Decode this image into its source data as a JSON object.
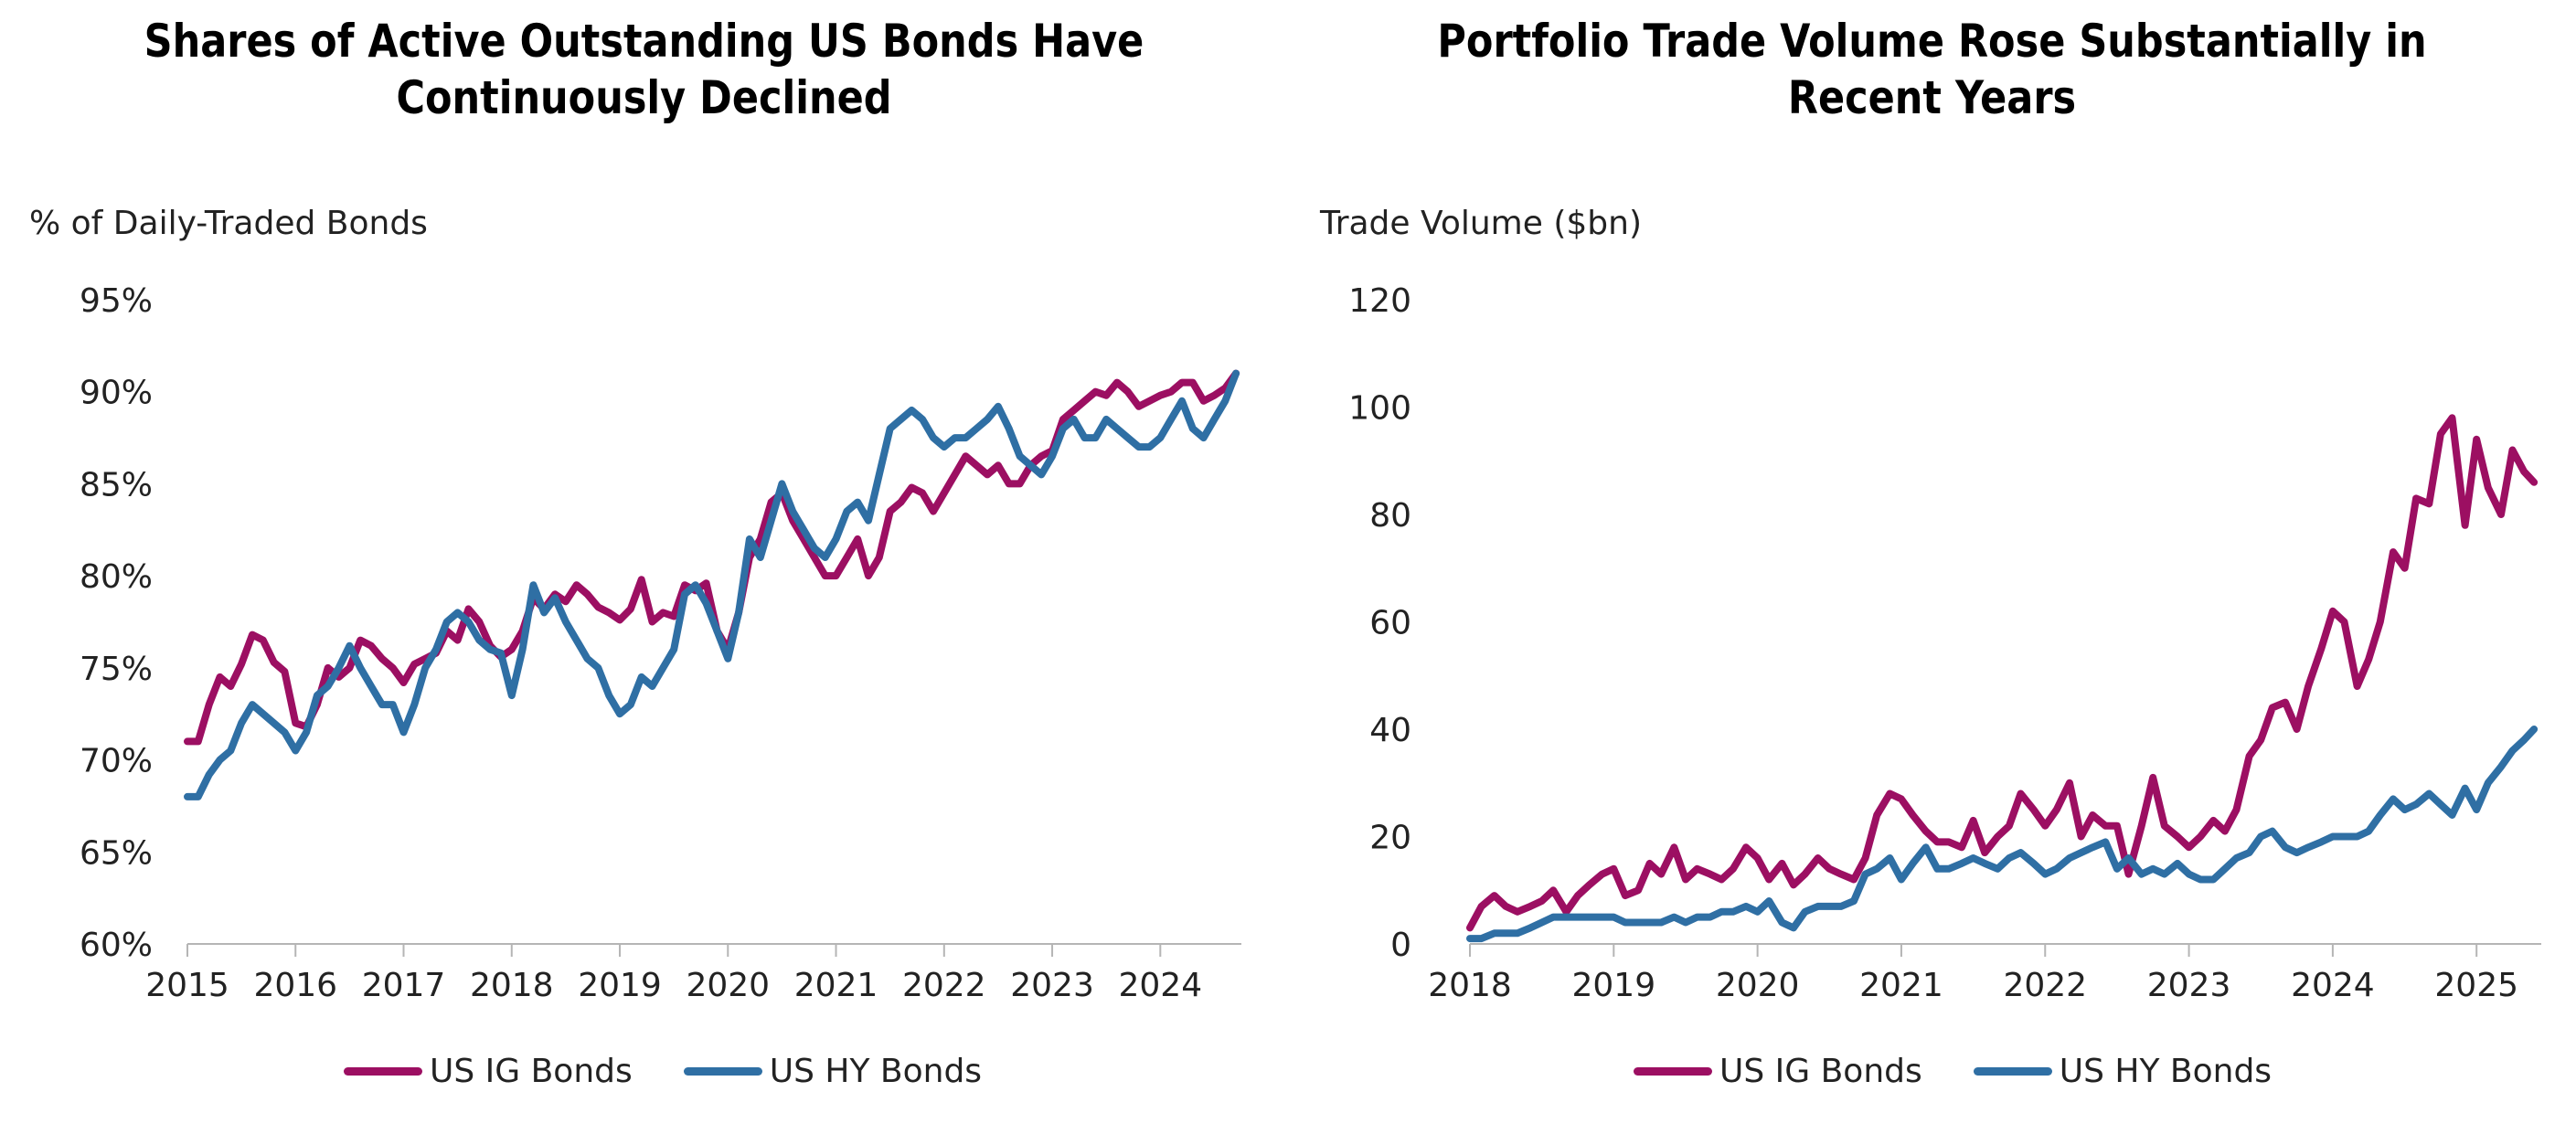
{
  "colors": {
    "ig": "#9c0f62",
    "hy": "#2f6fa4",
    "axis": "#b5b5b5",
    "text": "#222222"
  },
  "chart_data": [
    {
      "type": "line",
      "title": [
        "Shares of Active Outstanding US Bonds Have",
        "Continuously Declined"
      ],
      "ylabel": "% of Daily-Traded Bonds",
      "ylim": [
        60,
        95
      ],
      "xlim": [
        2015.0,
        2024.75
      ],
      "ytick_values": [
        60,
        65,
        70,
        75,
        80,
        85,
        90,
        95
      ],
      "yticks": [
        "60%",
        "65%",
        "70%",
        "75%",
        "80%",
        "85%",
        "90%",
        "95%"
      ],
      "xtick_values": [
        2015,
        2016,
        2017,
        2018,
        2019,
        2020,
        2021,
        2022,
        2023,
        2024
      ],
      "xticks": [
        "2015",
        "2016",
        "2017",
        "2018",
        "2019",
        "2020",
        "2021",
        "2022",
        "2023",
        "2024"
      ],
      "grid": false,
      "legend_position": "bottom",
      "series": [
        {
          "name": "US IG Bonds",
          "color_key": "ig",
          "x": [
            2015.0,
            2015.1,
            2015.2,
            2015.3,
            2015.4,
            2015.5,
            2015.6,
            2015.7,
            2015.8,
            2015.9,
            2016.0,
            2016.1,
            2016.2,
            2016.3,
            2016.4,
            2016.5,
            2016.6,
            2016.7,
            2016.8,
            2016.9,
            2017.0,
            2017.1,
            2017.2,
            2017.3,
            2017.4,
            2017.5,
            2017.6,
            2017.7,
            2017.8,
            2017.9,
            2018.0,
            2018.1,
            2018.2,
            2018.3,
            2018.4,
            2018.5,
            2018.6,
            2018.7,
            2018.8,
            2018.9,
            2019.0,
            2019.1,
            2019.2,
            2019.3,
            2019.4,
            2019.5,
            2019.6,
            2019.7,
            2019.8,
            2019.9,
            2020.0,
            2020.1,
            2020.2,
            2020.3,
            2020.4,
            2020.5,
            2020.6,
            2020.7,
            2020.8,
            2020.9,
            2021.0,
            2021.1,
            2021.2,
            2021.3,
            2021.4,
            2021.5,
            2021.6,
            2021.7,
            2021.8,
            2021.9,
            2022.0,
            2022.1,
            2022.2,
            2022.3,
            2022.4,
            2022.5,
            2022.6,
            2022.7,
            2022.8,
            2022.9,
            2023.0,
            2023.1,
            2023.2,
            2023.3,
            2023.4,
            2023.5,
            2023.6,
            2023.7,
            2023.8,
            2023.9,
            2024.0,
            2024.1,
            2024.2,
            2024.3,
            2024.4,
            2024.5,
            2024.6,
            2024.7
          ],
          "y": [
            71.0,
            71.0,
            73.0,
            74.5,
            74.0,
            75.2,
            76.8,
            76.5,
            75.3,
            74.8,
            72.0,
            71.8,
            73.0,
            75.0,
            74.5,
            75.0,
            76.5,
            76.2,
            75.5,
            75.0,
            74.2,
            75.2,
            75.5,
            75.8,
            77.0,
            76.5,
            78.2,
            77.5,
            76.2,
            75.6,
            76.0,
            77.0,
            78.8,
            78.2,
            79.0,
            78.6,
            79.5,
            79.0,
            78.3,
            78.0,
            77.6,
            78.2,
            79.8,
            77.5,
            78.0,
            77.8,
            79.5,
            79.2,
            79.6,
            77.0,
            76.0,
            78.0,
            81.0,
            82.0,
            84.0,
            84.5,
            83.0,
            82.0,
            81.0,
            80.0,
            80.0,
            81.0,
            82.0,
            80.0,
            81.0,
            83.5,
            84.0,
            84.8,
            84.5,
            83.5,
            84.5,
            85.5,
            86.5,
            86.0,
            85.5,
            86.0,
            85.0,
            85.0,
            86.0,
            86.5,
            86.8,
            88.5,
            89.0,
            89.5,
            90.0,
            89.8,
            90.5,
            90.0,
            89.2,
            89.5,
            89.8,
            90.0,
            90.5,
            90.5,
            89.5,
            89.8,
            90.2,
            91.0
          ]
        },
        {
          "name": "US HY Bonds",
          "color_key": "hy",
          "x": [
            2015.0,
            2015.1,
            2015.2,
            2015.3,
            2015.4,
            2015.5,
            2015.6,
            2015.7,
            2015.8,
            2015.9,
            2016.0,
            2016.1,
            2016.2,
            2016.3,
            2016.4,
            2016.5,
            2016.6,
            2016.7,
            2016.8,
            2016.9,
            2017.0,
            2017.1,
            2017.2,
            2017.3,
            2017.4,
            2017.5,
            2017.6,
            2017.7,
            2017.8,
            2017.9,
            2018.0,
            2018.1,
            2018.2,
            2018.3,
            2018.4,
            2018.5,
            2018.6,
            2018.7,
            2018.8,
            2018.9,
            2019.0,
            2019.1,
            2019.2,
            2019.3,
            2019.4,
            2019.5,
            2019.6,
            2019.7,
            2019.8,
            2019.9,
            2020.0,
            2020.1,
            2020.2,
            2020.3,
            2020.4,
            2020.5,
            2020.6,
            2020.7,
            2020.8,
            2020.9,
            2021.0,
            2021.1,
            2021.2,
            2021.3,
            2021.4,
            2021.5,
            2021.6,
            2021.7,
            2021.8,
            2021.9,
            2022.0,
            2022.1,
            2022.2,
            2022.3,
            2022.4,
            2022.5,
            2022.6,
            2022.7,
            2022.8,
            2022.9,
            2023.0,
            2023.1,
            2023.2,
            2023.3,
            2023.4,
            2023.5,
            2023.6,
            2023.7,
            2023.8,
            2023.9,
            2024.0,
            2024.1,
            2024.2,
            2024.3,
            2024.4,
            2024.5,
            2024.6,
            2024.7
          ],
          "y": [
            68.0,
            68.0,
            69.2,
            70.0,
            70.5,
            72.0,
            73.0,
            72.5,
            72.0,
            71.5,
            70.5,
            71.5,
            73.5,
            74.0,
            75.0,
            76.2,
            75.0,
            74.0,
            73.0,
            73.0,
            71.5,
            73.0,
            75.0,
            76.0,
            77.5,
            78.0,
            77.5,
            76.5,
            76.0,
            75.8,
            73.5,
            76.0,
            79.5,
            78.0,
            78.8,
            77.5,
            76.5,
            75.5,
            75.0,
            73.5,
            72.5,
            73.0,
            74.5,
            74.0,
            75.0,
            76.0,
            79.0,
            79.5,
            78.5,
            77.0,
            75.5,
            78.0,
            82.0,
            81.0,
            83.0,
            85.0,
            83.5,
            82.5,
            81.5,
            81.0,
            82.0,
            83.5,
            84.0,
            83.0,
            85.5,
            88.0,
            88.5,
            89.0,
            88.5,
            87.5,
            87.0,
            87.5,
            87.5,
            88.0,
            88.5,
            89.2,
            88.0,
            86.5,
            86.0,
            85.5,
            86.5,
            88.0,
            88.5,
            87.5,
            87.5,
            88.5,
            88.0,
            87.5,
            87.0,
            87.0,
            87.5,
            88.5,
            89.5,
            88.0,
            87.5,
            88.5,
            89.5,
            91.0
          ]
        }
      ]
    },
    {
      "type": "line",
      "title": [
        "Portfolio Trade Volume Rose Substantially in",
        "Recent Years"
      ],
      "ylabel": "Trade Volume ($bn)",
      "ylim": [
        0,
        120
      ],
      "xlim": [
        2018.0,
        2025.45
      ],
      "ytick_values": [
        0,
        20,
        40,
        60,
        80,
        100,
        120
      ],
      "yticks": [
        "0",
        "20",
        "40",
        "60",
        "80",
        "100",
        "120"
      ],
      "xtick_values": [
        2018,
        2019,
        2020,
        2021,
        2022,
        2023,
        2024,
        2025
      ],
      "xticks": [
        "2018",
        "2019",
        "2020",
        "2021",
        "2022",
        "2023",
        "2024",
        "2025"
      ],
      "grid": false,
      "legend_position": "bottom",
      "series": [
        {
          "name": "US IG Bonds",
          "color_key": "ig",
          "x": [
            2018.0,
            2018.08,
            2018.17,
            2018.25,
            2018.33,
            2018.42,
            2018.5,
            2018.58,
            2018.67,
            2018.75,
            2018.83,
            2018.92,
            2019.0,
            2019.08,
            2019.17,
            2019.25,
            2019.33,
            2019.42,
            2019.5,
            2019.58,
            2019.67,
            2019.75,
            2019.83,
            2019.92,
            2020.0,
            2020.08,
            2020.17,
            2020.25,
            2020.33,
            2020.42,
            2020.5,
            2020.58,
            2020.67,
            2020.75,
            2020.83,
            2020.92,
            2021.0,
            2021.08,
            2021.17,
            2021.25,
            2021.33,
            2021.42,
            2021.5,
            2021.58,
            2021.67,
            2021.75,
            2021.83,
            2021.92,
            2022.0,
            2022.08,
            2022.17,
            2022.25,
            2022.33,
            2022.42,
            2022.5,
            2022.58,
            2022.67,
            2022.75,
            2022.83,
            2022.92,
            2023.0,
            2023.08,
            2023.17,
            2023.25,
            2023.33,
            2023.42,
            2023.5,
            2023.58,
            2023.67,
            2023.75,
            2023.83,
            2023.92,
            2024.0,
            2024.08,
            2024.17,
            2024.25,
            2024.33,
            2024.42,
            2024.5,
            2024.58,
            2024.67,
            2024.75,
            2024.83,
            2024.92,
            2025.0,
            2025.08,
            2025.17,
            2025.25,
            2025.33,
            2025.4
          ],
          "y": [
            3,
            7,
            9,
            7,
            6,
            7,
            8,
            10,
            6,
            9,
            11,
            13,
            14,
            9,
            10,
            15,
            13,
            18,
            12,
            14,
            13,
            12,
            14,
            18,
            16,
            12,
            15,
            11,
            13,
            16,
            14,
            13,
            12,
            16,
            24,
            28,
            27,
            24,
            21,
            19,
            19,
            18,
            23,
            17,
            20,
            22,
            28,
            25,
            22,
            25,
            30,
            20,
            24,
            22,
            22,
            13,
            22,
            31,
            22,
            20,
            18,
            20,
            23,
            21,
            25,
            35,
            38,
            44,
            45,
            40,
            48,
            55,
            62,
            60,
            48,
            53,
            60,
            73,
            70,
            83,
            82,
            95,
            98,
            78,
            94,
            85,
            80,
            92,
            88,
            86
          ]
        },
        {
          "name": "US HY Bonds",
          "color_key": "hy",
          "x": [
            2018.0,
            2018.08,
            2018.17,
            2018.25,
            2018.33,
            2018.42,
            2018.5,
            2018.58,
            2018.67,
            2018.75,
            2018.83,
            2018.92,
            2019.0,
            2019.08,
            2019.17,
            2019.25,
            2019.33,
            2019.42,
            2019.5,
            2019.58,
            2019.67,
            2019.75,
            2019.83,
            2019.92,
            2020.0,
            2020.08,
            2020.17,
            2020.25,
            2020.33,
            2020.42,
            2020.5,
            2020.58,
            2020.67,
            2020.75,
            2020.83,
            2020.92,
            2021.0,
            2021.08,
            2021.17,
            2021.25,
            2021.33,
            2021.42,
            2021.5,
            2021.58,
            2021.67,
            2021.75,
            2021.83,
            2021.92,
            2022.0,
            2022.08,
            2022.17,
            2022.25,
            2022.33,
            2022.42,
            2022.5,
            2022.58,
            2022.67,
            2022.75,
            2022.83,
            2022.92,
            2023.0,
            2023.08,
            2023.17,
            2023.25,
            2023.33,
            2023.42,
            2023.5,
            2023.58,
            2023.67,
            2023.75,
            2023.83,
            2023.92,
            2024.0,
            2024.08,
            2024.17,
            2024.25,
            2024.33,
            2024.42,
            2024.5,
            2024.58,
            2024.67,
            2024.75,
            2024.83,
            2024.92,
            2025.0,
            2025.08,
            2025.17,
            2025.25,
            2025.33,
            2025.4
          ],
          "y": [
            1,
            1,
            2,
            2,
            2,
            3,
            4,
            5,
            5,
            5,
            5,
            5,
            5,
            4,
            4,
            4,
            4,
            5,
            4,
            5,
            5,
            6,
            6,
            7,
            6,
            8,
            4,
            3,
            6,
            7,
            7,
            7,
            8,
            13,
            14,
            16,
            12,
            15,
            18,
            14,
            14,
            15,
            16,
            15,
            14,
            16,
            17,
            15,
            13,
            14,
            16,
            17,
            18,
            19,
            14,
            16,
            13,
            14,
            13,
            15,
            13,
            12,
            12,
            14,
            16,
            17,
            20,
            21,
            18,
            17,
            18,
            19,
            20,
            20,
            20,
            21,
            24,
            27,
            25,
            26,
            28,
            26,
            24,
            29,
            25,
            30,
            33,
            36,
            38,
            40
          ]
        }
      ]
    }
  ]
}
